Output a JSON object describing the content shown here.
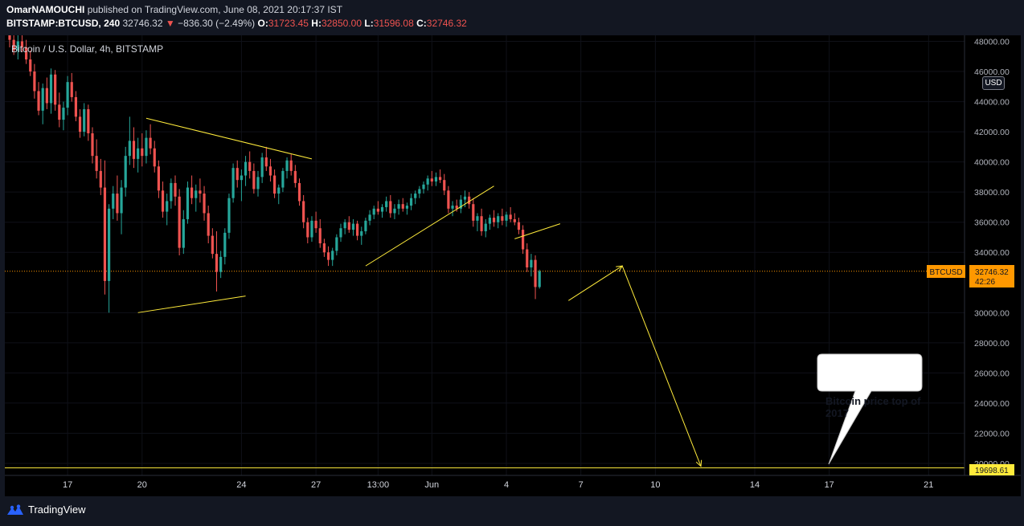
{
  "header": {
    "author": "OmarNAMOUCHI",
    "published_text": "published on TradingView.com, June 08, 2021 20:17:37 IST",
    "symbol": "BITSTAMP:BTCUSD, 240",
    "last_price": "32746.32",
    "change_arrow": "▼",
    "change": "−836.30 (−2.49%)",
    "o_label": "O:",
    "o_value": "31723.45",
    "h_label": "H:",
    "h_value": "32850.00",
    "l_label": "L:",
    "l_value": "31596.08",
    "c_label": "C:",
    "c_value": "32746.32"
  },
  "legend_title": "Bitcoin / U.S. Dollar, 4h, BITSTAMP",
  "currency_badge": "USD",
  "price_tag": {
    "symbol": "BTCUSD",
    "price": "32746.32",
    "countdown": "42:26",
    "color": "#ff9800"
  },
  "level_tag": {
    "price": "19698.61",
    "color": "#ffeb3b"
  },
  "callout": {
    "text": "Bitcoin price top of 2017"
  },
  "footer": {
    "brand": "TradingView"
  },
  "colors": {
    "background": "#000000",
    "up": "#26a69a",
    "down": "#ef5350",
    "drawing": "#ffeb3b",
    "last_price_line": "#ff9800"
  },
  "chart_data": {
    "type": "candlestick",
    "timeframe": "4h",
    "ylim": [
      19200,
      48400
    ],
    "y_ticks": [
      48000,
      46000,
      44000,
      42000,
      40000,
      38000,
      36000,
      34000,
      30000,
      28000,
      26000,
      24000,
      22000,
      20000
    ],
    "y_tick_labels": [
      "48000.00",
      "46000.00",
      "44000.00",
      "42000.00",
      "40000.00",
      "38000.00",
      "36000.00",
      "34000.00",
      "30000.00",
      "28000.00",
      "26000.00",
      "24000.00",
      "22000.00",
      "20000.00"
    ],
    "x_tick_labels": [
      {
        "label": "17",
        "bar": 14
      },
      {
        "label": "20",
        "bar": 32
      },
      {
        "label": "24",
        "bar": 56
      },
      {
        "label": "27",
        "bar": 74
      },
      {
        "label": "13:00",
        "bar": 89
      },
      {
        "label": "Jun",
        "bar": 102
      },
      {
        "label": "4",
        "bar": 120
      },
      {
        "label": "7",
        "bar": 138
      },
      {
        "label": "10",
        "bar": 156
      },
      {
        "label": "14",
        "bar": 180
      },
      {
        "label": "17",
        "bar": 198
      },
      {
        "label": "21",
        "bar": 222
      }
    ],
    "last_price": 32746.32,
    "horizontal_level": 19698.61,
    "candles": [
      [
        49000,
        49600,
        47600,
        48100
      ],
      [
        48100,
        48500,
        47100,
        47400
      ],
      [
        47400,
        48400,
        46800,
        48000
      ],
      [
        48000,
        48500,
        47300,
        47600
      ],
      [
        47600,
        48100,
        46500,
        46800
      ],
      [
        46800,
        47400,
        45700,
        46000
      ],
      [
        46000,
        46500,
        44200,
        44700
      ],
      [
        44700,
        45300,
        43100,
        43400
      ],
      [
        43400,
        45200,
        42500,
        44900
      ],
      [
        44900,
        45600,
        43500,
        43900
      ],
      [
        43900,
        46200,
        43200,
        45800
      ],
      [
        45800,
        46100,
        43400,
        43800
      ],
      [
        43800,
        44600,
        42300,
        42800
      ],
      [
        42800,
        44000,
        42100,
        43600
      ],
      [
        43600,
        45700,
        43100,
        45300
      ],
      [
        45300,
        45900,
        44000,
        44300
      ],
      [
        44300,
        44700,
        42700,
        43000
      ],
      [
        43000,
        43500,
        41600,
        42000
      ],
      [
        42000,
        43900,
        41700,
        43500
      ],
      [
        43500,
        43800,
        41400,
        41900
      ],
      [
        41900,
        42300,
        39900,
        40400
      ],
      [
        40400,
        41500,
        38900,
        39400
      ],
      [
        39400,
        40200,
        37800,
        38300
      ],
      [
        38300,
        40100,
        31200,
        32100
      ],
      [
        32100,
        37200,
        30000,
        36900
      ],
      [
        36900,
        38400,
        36200,
        37900
      ],
      [
        37900,
        39100,
        36100,
        36600
      ],
      [
        36600,
        38800,
        35200,
        38300
      ],
      [
        38300,
        41000,
        37700,
        40400
      ],
      [
        40400,
        43000,
        39800,
        41400
      ],
      [
        41400,
        42300,
        39600,
        40200
      ],
      [
        40200,
        41600,
        39300,
        40900
      ],
      [
        40900,
        41900,
        39700,
        40400
      ],
      [
        40400,
        42100,
        39900,
        41600
      ],
      [
        41600,
        42500,
        40500,
        40900
      ],
      [
        40900,
        41400,
        39300,
        39700
      ],
      [
        39700,
        40100,
        37600,
        38100
      ],
      [
        38100,
        38700,
        36300,
        36700
      ],
      [
        36700,
        37900,
        35800,
        37400
      ],
      [
        37400,
        38900,
        36900,
        38600
      ],
      [
        38600,
        39100,
        37100,
        37700
      ],
      [
        37700,
        38200,
        33800,
        34300
      ],
      [
        34300,
        36800,
        33900,
        36200
      ],
      [
        36200,
        38700,
        35900,
        38300
      ],
      [
        38300,
        39100,
        37200,
        37600
      ],
      [
        37600,
        38500,
        36700,
        38100
      ],
      [
        38100,
        38900,
        37300,
        37900
      ],
      [
        37900,
        38400,
        36100,
        36600
      ],
      [
        36600,
        37100,
        34600,
        35100
      ],
      [
        35100,
        35600,
        33600,
        33900
      ],
      [
        33900,
        35400,
        31400,
        32700
      ],
      [
        32700,
        34100,
        32300,
        33700
      ],
      [
        33700,
        35600,
        33200,
        35300
      ],
      [
        35300,
        37900,
        34900,
        37600
      ],
      [
        37600,
        39900,
        37300,
        39600
      ],
      [
        39600,
        40100,
        38300,
        38800
      ],
      [
        38800,
        39500,
        37400,
        39100
      ],
      [
        39100,
        40400,
        38400,
        40000
      ],
      [
        40000,
        40700,
        38900,
        39400
      ],
      [
        39400,
        39900,
        37900,
        38200
      ],
      [
        38200,
        39400,
        37700,
        39000
      ],
      [
        39000,
        40600,
        38600,
        40300
      ],
      [
        40300,
        41000,
        39400,
        39700
      ],
      [
        39700,
        40200,
        38700,
        39100
      ],
      [
        39100,
        39500,
        37600,
        37900
      ],
      [
        37900,
        38500,
        37200,
        38300
      ],
      [
        38300,
        39600,
        38000,
        39400
      ],
      [
        39400,
        40300,
        38900,
        40100
      ],
      [
        40100,
        40500,
        39100,
        39400
      ],
      [
        39400,
        39800,
        38300,
        38600
      ],
      [
        38600,
        38900,
        37100,
        37400
      ],
      [
        37400,
        37800,
        35600,
        36000
      ],
      [
        36000,
        36300,
        34600,
        35000
      ],
      [
        35000,
        36400,
        34700,
        36100
      ],
      [
        36100,
        36700,
        35300,
        35600
      ],
      [
        35600,
        36200,
        34300,
        34600
      ],
      [
        34600,
        34900,
        33700,
        34000
      ],
      [
        34000,
        34400,
        33100,
        33500
      ],
      [
        33500,
        34300,
        33100,
        34100
      ],
      [
        34100,
        35200,
        33800,
        35000
      ],
      [
        35000,
        35900,
        34700,
        35600
      ],
      [
        35600,
        36200,
        35200,
        36000
      ],
      [
        36000,
        36400,
        35300,
        35500
      ],
      [
        35500,
        36200,
        35100,
        35900
      ],
      [
        35900,
        36100,
        34800,
        35100
      ],
      [
        35100,
        35700,
        34500,
        35400
      ],
      [
        35400,
        36300,
        35200,
        36100
      ],
      [
        36100,
        36800,
        35800,
        36500
      ],
      [
        36500,
        37100,
        36200,
        36900
      ],
      [
        36900,
        37400,
        36500,
        36700
      ],
      [
        36700,
        37200,
        36300,
        37000
      ],
      [
        37000,
        37700,
        36700,
        37400
      ],
      [
        37400,
        37800,
        36300,
        36600
      ],
      [
        36600,
        37200,
        36200,
        36900
      ],
      [
        36900,
        37500,
        36500,
        37200
      ],
      [
        37200,
        37600,
        36700,
        36900
      ],
      [
        36900,
        37300,
        36500,
        37100
      ],
      [
        37100,
        37900,
        36800,
        37600
      ],
      [
        37600,
        38100,
        37200,
        37900
      ],
      [
        37900,
        38400,
        37600,
        38200
      ],
      [
        38200,
        38700,
        37900,
        38500
      ],
      [
        38500,
        39100,
        38100,
        38900
      ],
      [
        38900,
        39400,
        38400,
        38700
      ],
      [
        38700,
        39300,
        38400,
        39000
      ],
      [
        39000,
        39500,
        38600,
        38800
      ],
      [
        38800,
        39200,
        37800,
        38100
      ],
      [
        38100,
        38400,
        36600,
        36900
      ],
      [
        36900,
        37400,
        36400,
        37100
      ],
      [
        37100,
        37500,
        36700,
        36900
      ],
      [
        36900,
        37800,
        36600,
        37500
      ],
      [
        37500,
        38100,
        37000,
        37700
      ],
      [
        37700,
        38000,
        36900,
        37200
      ],
      [
        37200,
        37600,
        35700,
        36100
      ],
      [
        36100,
        36600,
        35400,
        36400
      ],
      [
        36400,
        36900,
        35100,
        35400
      ],
      [
        35400,
        36200,
        35000,
        35900
      ],
      [
        35900,
        36500,
        35500,
        36300
      ],
      [
        36300,
        36800,
        35700,
        36000
      ],
      [
        36000,
        36600,
        35600,
        36400
      ],
      [
        36400,
        36900,
        35800,
        36100
      ],
      [
        36100,
        36700,
        35700,
        36500
      ],
      [
        36500,
        37000,
        36000,
        36200
      ],
      [
        36200,
        36600,
        35800,
        36000
      ],
      [
        36000,
        36300,
        35200,
        35500
      ],
      [
        35500,
        35800,
        33900,
        34200
      ],
      [
        34200,
        34600,
        32700,
        33000
      ],
      [
        33000,
        33900,
        32400,
        33500
      ],
      [
        33500,
        33800,
        30900,
        31700
      ],
      [
        31700,
        32850,
        31596,
        32746
      ]
    ],
    "drawings": [
      {
        "type": "trendline",
        "from": [
          33,
          42900
        ],
        "to": [
          73,
          40200
        ]
      },
      {
        "type": "trendline",
        "from": [
          31,
          30000
        ],
        "to": [
          57,
          31100
        ]
      },
      {
        "type": "trendline",
        "from": [
          86,
          33100
        ],
        "to": [
          117,
          38400
        ]
      },
      {
        "type": "trendline",
        "from": [
          122,
          34900
        ],
        "to": [
          133,
          35900
        ]
      },
      {
        "type": "trendline",
        "from": [
          135,
          30800
        ],
        "to": [
          148,
          33100
        ]
      },
      {
        "type": "trendline",
        "from": [
          148,
          33100
        ],
        "to": [
          167,
          19800
        ]
      }
    ]
  }
}
